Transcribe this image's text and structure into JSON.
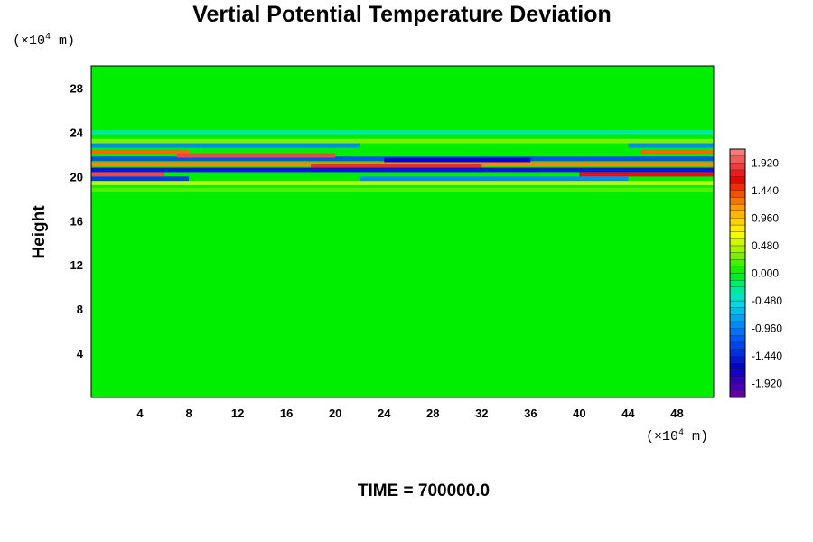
{
  "chart_data": {
    "type": "heatmap",
    "title": "Vertial Potential Temperature Deviation",
    "ylabel": "Height",
    "x_unit_prefix": "(×10",
    "x_unit_exp": "4",
    "x_unit_suffix": " m)",
    "y_unit_prefix": "(×10",
    "y_unit_exp": "4",
    "y_unit_suffix": " m)",
    "footer": "TIME = 700000.0",
    "xlim": [
      0,
      51
    ],
    "ylim": [
      0,
      30
    ],
    "x_ticks": [
      4,
      8,
      12,
      16,
      20,
      24,
      28,
      32,
      36,
      40,
      44,
      48
    ],
    "y_ticks": [
      4,
      8,
      12,
      16,
      20,
      24,
      28
    ],
    "colorbar": {
      "range": [
        -2.16,
        2.16
      ],
      "labels": [
        "1.920",
        "1.440",
        "0.960",
        "0.480",
        "0.000",
        "-0.480",
        "-0.960",
        "-1.440",
        "-1.920"
      ],
      "label_values": [
        1.92,
        1.44,
        0.96,
        0.48,
        0.0,
        -0.48,
        -0.96,
        -1.44,
        -1.92
      ]
    },
    "background_value": 0.0,
    "features": [
      {
        "desc": "band",
        "y_center": 24.0,
        "x_start": 0,
        "x_end": 51,
        "value": -0.3
      },
      {
        "desc": "band",
        "y_center": 23.2,
        "x_start": 0,
        "x_end": 51,
        "value": 0.3
      },
      {
        "desc": "band",
        "y_center": 22.8,
        "x_start": 0,
        "x_end": 22,
        "value": -0.9
      },
      {
        "desc": "band",
        "y_center": 22.8,
        "x_start": 44,
        "x_end": 51,
        "value": -0.9
      },
      {
        "desc": "band",
        "y_center": 22.2,
        "x_start": 0,
        "x_end": 8,
        "value": 1.3
      },
      {
        "desc": "band",
        "y_center": 22.2,
        "x_start": 45,
        "x_end": 51,
        "value": 1.3
      },
      {
        "desc": "band",
        "y_center": 21.6,
        "x_start": 0,
        "x_end": 51,
        "value": -1.2
      },
      {
        "desc": "band",
        "y_center": 21.9,
        "x_start": 7,
        "x_end": 20,
        "value": 1.9
      },
      {
        "desc": "band",
        "y_center": 21.1,
        "x_start": 0,
        "x_end": 51,
        "value": 1.2
      },
      {
        "desc": "band",
        "y_center": 21.5,
        "x_start": 24,
        "x_end": 36,
        "value": -1.6
      },
      {
        "desc": "band",
        "y_center": 20.9,
        "x_start": 18,
        "x_end": 32,
        "value": 1.8
      },
      {
        "desc": "band",
        "y_center": 20.6,
        "x_start": 0,
        "x_end": 51,
        "value": -1.5
      },
      {
        "desc": "band",
        "y_center": 20.2,
        "x_start": 0,
        "x_end": 6,
        "value": 1.9
      },
      {
        "desc": "band",
        "y_center": 20.2,
        "x_start": 40,
        "x_end": 51,
        "value": 1.7
      },
      {
        "desc": "band",
        "y_center": 19.8,
        "x_start": 0,
        "x_end": 8,
        "value": -1.3
      },
      {
        "desc": "band",
        "y_center": 19.8,
        "x_start": 22,
        "x_end": 44,
        "value": -0.9
      },
      {
        "desc": "band",
        "y_center": 19.4,
        "x_start": 0,
        "x_end": 51,
        "value": 0.5
      },
      {
        "desc": "band",
        "y_center": 18.8,
        "x_start": 0,
        "x_end": 51,
        "value": 0.2
      }
    ],
    "grid": false,
    "legend": "right"
  }
}
